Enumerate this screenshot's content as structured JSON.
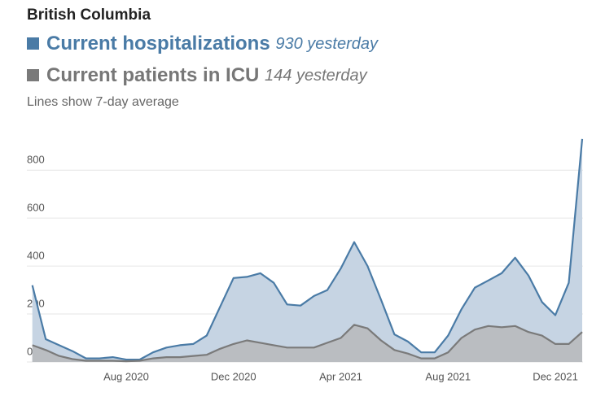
{
  "chart_data": {
    "type": "area",
    "title": "British Columbia",
    "subtitle": "Lines show 7-day average",
    "categories": [
      null,
      null,
      null,
      null,
      null,
      null,
      null,
      "Aug 2020",
      null,
      null,
      null,
      null,
      null,
      null,
      null,
      "Dec 2020",
      null,
      null,
      null,
      null,
      null,
      null,
      null,
      "Apr 2021",
      null,
      null,
      null,
      null,
      null,
      null,
      null,
      "Aug 2021",
      null,
      null,
      null,
      null,
      null,
      null,
      null,
      "Dec 2021",
      null,
      null
    ],
    "series": [
      {
        "name": "Current hospitalizations",
        "latest": "930 yesterday",
        "color": "#4a7ba6",
        "fill": "#c6d4e3",
        "values": [
          320,
          95,
          70,
          45,
          15,
          15,
          20,
          10,
          10,
          40,
          60,
          70,
          75,
          110,
          230,
          350,
          355,
          370,
          330,
          240,
          235,
          275,
          300,
          390,
          500,
          400,
          260,
          115,
          85,
          40,
          40,
          110,
          220,
          310,
          340,
          370,
          435,
          360,
          250,
          195,
          330,
          930
        ]
      },
      {
        "name": "Current patients in ICU",
        "latest": "144 yesterday",
        "color": "#7a7a7a",
        "fill": "#b8babd",
        "values": [
          70,
          50,
          25,
          12,
          5,
          5,
          5,
          3,
          5,
          15,
          20,
          20,
          25,
          30,
          55,
          75,
          90,
          80,
          70,
          60,
          60,
          60,
          80,
          100,
          155,
          140,
          90,
          50,
          35,
          15,
          15,
          40,
          100,
          135,
          150,
          145,
          150,
          125,
          110,
          75,
          75,
          125
        ]
      }
    ],
    "ylim": [
      0,
      950
    ],
    "yticks": [
      0,
      200,
      400,
      600,
      800
    ],
    "grid": true
  }
}
